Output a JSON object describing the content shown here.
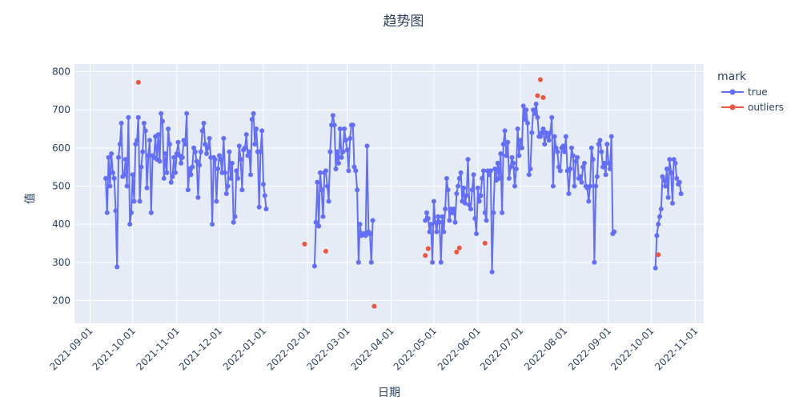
{
  "chart_data": {
    "type": "line",
    "title": "趋势图",
    "xlabel": "日期",
    "ylabel": "值",
    "x_tick_labels": [
      "2021-09-01",
      "2021-10-01",
      "2021-11-01",
      "2021-12-01",
      "2022-01-01",
      "2022-02-01",
      "2022-03-01",
      "2022-04-01",
      "2022-05-01",
      "2022-06-01",
      "2022-07-01",
      "2022-08-01",
      "2022-09-01",
      "2022-10-01",
      "2022-11-01"
    ],
    "y_ticks": [
      200,
      300,
      400,
      500,
      600,
      700,
      800
    ],
    "xlim": [
      "2021-08-21",
      "2022-11-07"
    ],
    "ylim": [
      140,
      820
    ],
    "grid": true,
    "legend": {
      "title": "mark",
      "placement": "right",
      "entries": [
        "true",
        "outliers"
      ]
    },
    "colors": {
      "true": "#636efa",
      "outliers": "#ef553b",
      "plot_bg": "#e5ecf6",
      "grid": "#ffffff",
      "text": "#2a3f5f"
    },
    "series": [
      {
        "name": "true",
        "mode": "lines+markers",
        "segments": [
          {
            "start": "2021-09-12",
            "values": [
              520,
              430,
              575,
              500,
              585,
              535,
              520,
              435,
              288,
              575,
              610,
              665,
              525,
              530,
              570,
              500,
              680,
              400,
              430,
              530,
              460,
              610,
              620,
              680,
              460,
              550,
              590,
              665,
              645,
              495,
              580,
              620,
              430,
              580,
              575,
              630,
              570,
              635,
              565,
              690,
              670,
              520,
              585,
              535,
              650,
              610,
              510,
              525,
              575,
              535,
              585,
              615,
              580,
              560,
              575,
              620,
              610,
              690,
              490,
              545,
              530,
              550,
              600,
              590,
              565,
              470,
              555,
              590,
              645,
              665,
              610,
              585,
              600,
              625,
              575,
              400,
              575,
              570,
              460,
              545,
              580,
              570,
              535,
              625,
              535,
              480,
              500,
              590,
              520,
              560,
              405,
              420,
              540,
              520,
              605,
              570,
              490,
              595,
              600,
              635,
              580,
              590,
              530,
              675,
              690,
              610,
              650,
              590,
              445,
              590,
              645,
              505,
              475,
              440
            ]
          },
          {
            "start": "2022-02-06",
            "values": [
              290,
              405,
              510,
              395,
              535,
              490,
              420,
              535,
              540,
              500,
              460,
              590,
              660,
              685,
              660,
              545,
              590,
              560,
              650,
              575,
              590,
              650,
              620,
              595,
              540,
              625,
              660,
              660,
              550,
              540,
              490,
              300,
              400,
              370,
              375,
              375,
              370,
              605,
              380,
              375,
              300,
              410
            ]
          },
          {
            "start": "2022-04-25",
            "values": [
              410,
              430,
              415,
              380,
              400,
              300,
              460,
              405,
              380,
              420,
              405,
              300,
              420,
              380,
              440,
              520,
              490,
              410,
              440,
              430,
              440,
              405,
              480,
              500,
              520,
              535,
              460,
              495,
              455,
              475,
              570,
              450,
              440,
              490,
              530,
              415,
              375,
              495,
              460,
              475,
              520,
              540,
              430,
              410,
              540,
              530,
              540,
              275,
              430,
              545,
              515,
              560,
              520,
              585,
              430,
              610,
              645,
              580,
              615,
              520,
              550,
              575,
              560,
              500,
              545,
              650,
              580,
              620,
              600,
              710,
              675,
              700,
              665,
              530,
              545,
              640,
              700,
              690,
              715,
              680,
              630,
              630,
              640,
              650,
              610,
              640,
              630,
              620,
              640,
              680,
              500,
              630,
              600,
              590,
              550,
              540,
              600,
              605,
              590,
              630,
              540,
              480,
              545,
              600,
              580,
              500,
              565,
              575,
              520,
              525,
              510,
              550,
              560,
              500,
              495,
              460,
              500,
              600,
              570,
              300,
              500,
              525,
              610,
              620,
              590,
              550,
              560,
              530,
              610,
              560,
              545,
              630,
              375,
              380
            ]
          },
          {
            "start": "2022-10-04",
            "values": [
              285,
              370,
              400,
              420,
              440,
              525,
              515,
              500,
              545,
              470,
              570,
              535,
              455,
              570,
              560,
              520,
              505,
              510,
              480
            ]
          }
        ]
      },
      {
        "name": "outliers",
        "mode": "markers",
        "points": [
          {
            "x": "2021-10-05",
            "y": 772
          },
          {
            "x": "2022-01-30",
            "y": 348
          },
          {
            "x": "2022-02-14",
            "y": 329
          },
          {
            "x": "2022-03-20",
            "y": 185
          },
          {
            "x": "2022-04-25",
            "y": 318
          },
          {
            "x": "2022-04-27",
            "y": 336
          },
          {
            "x": "2022-05-17",
            "y": 327
          },
          {
            "x": "2022-05-19",
            "y": 338
          },
          {
            "x": "2022-06-06",
            "y": 350
          },
          {
            "x": "2022-07-13",
            "y": 737
          },
          {
            "x": "2022-07-15",
            "y": 779
          },
          {
            "x": "2022-07-17",
            "y": 732
          },
          {
            "x": "2022-10-06",
            "y": 320
          }
        ]
      }
    ]
  }
}
